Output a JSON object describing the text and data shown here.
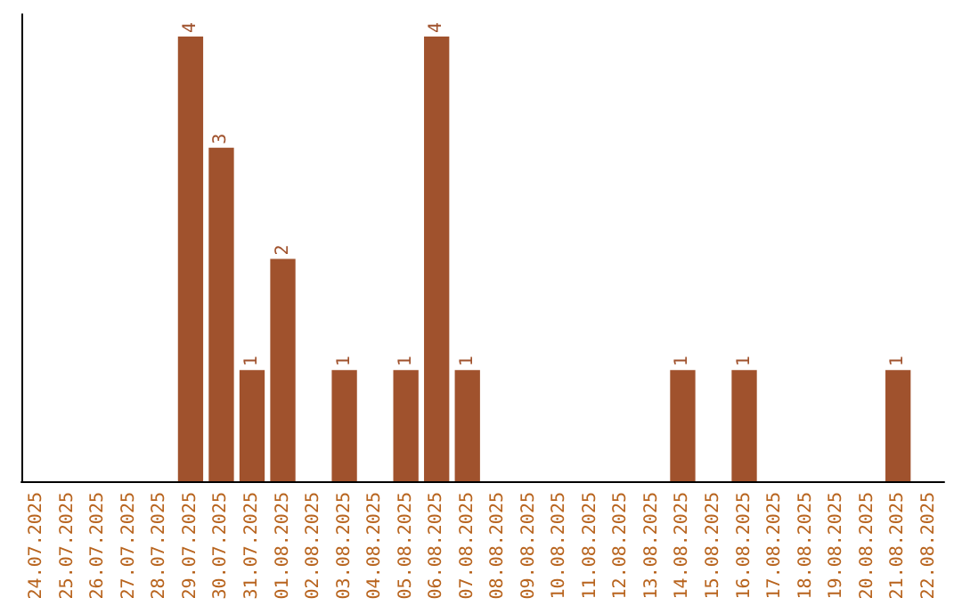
{
  "chart_data": {
    "type": "bar",
    "categories": [
      "24.07.2025",
      "25.07.2025",
      "26.07.2025",
      "27.07.2025",
      "28.07.2025",
      "29.07.2025",
      "30.07.2025",
      "31.07.2025",
      "01.08.2025",
      "02.08.2025",
      "03.08.2025",
      "04.08.2025",
      "05.08.2025",
      "06.08.2025",
      "07.08.2025",
      "08.08.2025",
      "09.08.2025",
      "10.08.2025",
      "11.08.2025",
      "12.08.2025",
      "13.08.2025",
      "14.08.2025",
      "15.08.2025",
      "16.08.2025",
      "17.08.2025",
      "18.08.2025",
      "19.08.2025",
      "20.08.2025",
      "21.08.2025",
      "22.08.2025"
    ],
    "values": [
      null,
      null,
      null,
      null,
      null,
      4,
      3,
      1,
      2,
      null,
      1,
      null,
      1,
      4,
      1,
      null,
      null,
      null,
      null,
      null,
      null,
      1,
      null,
      1,
      null,
      null,
      null,
      null,
      1,
      null
    ],
    "color": "#a0522d",
    "data_labels": true,
    "grid": false,
    "tick_labels": "x"
  }
}
